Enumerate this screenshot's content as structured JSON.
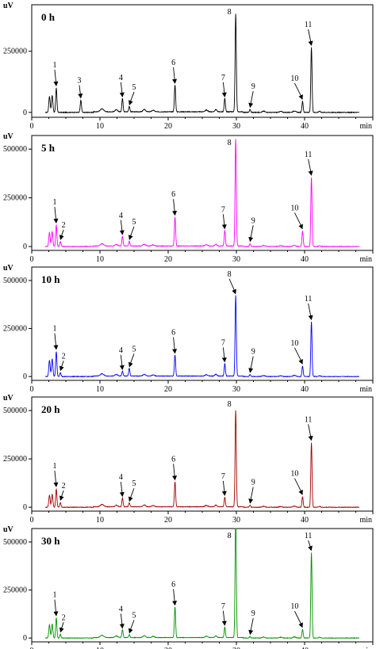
{
  "chart_data": [
    {
      "type": "line",
      "title": "0 h",
      "ylabel": "uV",
      "xlabel": "min",
      "xlim": [
        0,
        50
      ],
      "ylim": [
        -20000,
        440000
      ],
      "xticks": [
        0,
        10,
        20,
        30,
        40,
        50
      ],
      "xtick_labels": [
        "0",
        "10",
        "20",
        "30",
        "40",
        "50"
      ],
      "yticks": [
        0,
        250000
      ],
      "ytick_labels": [
        "0",
        "250000"
      ],
      "color": "#000000",
      "grid": false,
      "peaks": [
        {
          "label": "1",
          "x": 3.6,
          "y": 100000
        },
        {
          "label": "3",
          "x": 7.2,
          "y": 50000
        },
        {
          "label": "4",
          "x": 13.3,
          "y": 55000
        },
        {
          "label": "5",
          "x": 14.3,
          "y": 22000
        },
        {
          "label": "6",
          "x": 21.0,
          "y": 110000
        },
        {
          "label": "7",
          "x": 28.3,
          "y": 55000
        },
        {
          "label": "8",
          "x": 29.9,
          "y": 400000
        },
        {
          "label": "9",
          "x": 32.0,
          "y": 12000
        },
        {
          "label": "10",
          "x": 39.7,
          "y": 45000
        },
        {
          "label": "11",
          "x": 41.0,
          "y": 265000
        }
      ]
    },
    {
      "type": "line",
      "title": "5 h",
      "ylabel": "uV",
      "xlabel": "min",
      "xlim": [
        0,
        50
      ],
      "ylim": [
        -20000,
        570000
      ],
      "xticks": [
        0,
        10,
        20,
        30,
        40,
        50
      ],
      "xtick_labels": [
        "0",
        "10",
        "20",
        "30",
        "40",
        "50"
      ],
      "yticks": [
        0,
        250000,
        500000
      ],
      "ytick_labels": [
        "0",
        "250000",
        "500000"
      ],
      "color": "#ff00ff",
      "grid": false,
      "peaks": [
        {
          "label": "1",
          "x": 3.6,
          "y": 110000
        },
        {
          "label": "2",
          "x": 4.2,
          "y": 25000
        },
        {
          "label": "4",
          "x": 13.3,
          "y": 50000
        },
        {
          "label": "5",
          "x": 14.3,
          "y": 25000
        },
        {
          "label": "6",
          "x": 21.0,
          "y": 150000
        },
        {
          "label": "7",
          "x": 28.3,
          "y": 80000
        },
        {
          "label": "8",
          "x": 29.9,
          "y": 550000
        },
        {
          "label": "9",
          "x": 32.0,
          "y": 15000
        },
        {
          "label": "10",
          "x": 39.7,
          "y": 80000
        },
        {
          "label": "11",
          "x": 41.0,
          "y": 355000
        }
      ]
    },
    {
      "type": "line",
      "title": "10 h",
      "ylabel": "uV",
      "xlabel": "min",
      "xlim": [
        0,
        50
      ],
      "ylim": [
        -20000,
        570000
      ],
      "xticks": [
        0,
        10,
        20,
        30,
        40,
        50
      ],
      "xtick_labels": [
        "0",
        "10",
        "20",
        "30",
        "40",
        "50"
      ],
      "yticks": [
        0,
        250000,
        500000
      ],
      "ytick_labels": [
        "0",
        "250000",
        "500000"
      ],
      "color": "#0000ff",
      "grid": false,
      "peaks": [
        {
          "label": "1",
          "x": 3.6,
          "y": 130000
        },
        {
          "label": "2",
          "x": 4.2,
          "y": 20000
        },
        {
          "label": "4",
          "x": 13.3,
          "y": 25000
        },
        {
          "label": "5",
          "x": 14.3,
          "y": 40000
        },
        {
          "label": "6",
          "x": 21.0,
          "y": 110000
        },
        {
          "label": "7",
          "x": 28.3,
          "y": 65000
        },
        {
          "label": "8",
          "x": 29.9,
          "y": 420000
        },
        {
          "label": "9",
          "x": 32.0,
          "y": 10000
        },
        {
          "label": "10",
          "x": 39.7,
          "y": 55000
        },
        {
          "label": "11",
          "x": 41.0,
          "y": 285000
        }
      ]
    },
    {
      "type": "line",
      "title": "20 h",
      "ylabel": "uV",
      "xlabel": "min",
      "xlim": [
        0,
        50
      ],
      "ylim": [
        -20000,
        570000
      ],
      "xticks": [
        0,
        10,
        20,
        30,
        40,
        50
      ],
      "xtick_labels": [
        "0",
        "10",
        "20",
        "30",
        "40",
        "50"
      ],
      "yticks": [
        0,
        250000,
        500000
      ],
      "ytick_labels": [
        "0",
        "250000",
        "500000"
      ],
      "color": "#a00000",
      "grid": false,
      "peaks": [
        {
          "label": "1",
          "x": 3.6,
          "y": 95000
        },
        {
          "label": "2",
          "x": 4.2,
          "y": 25000
        },
        {
          "label": "4",
          "x": 13.3,
          "y": 45000
        },
        {
          "label": "5",
          "x": 14.3,
          "y": 20000
        },
        {
          "label": "6",
          "x": 21.0,
          "y": 130000
        },
        {
          "label": "7",
          "x": 28.3,
          "y": 50000
        },
        {
          "label": "8",
          "x": 29.9,
          "y": 500000
        },
        {
          "label": "9",
          "x": 32.0,
          "y": 10000
        },
        {
          "label": "10",
          "x": 39.7,
          "y": 55000
        },
        {
          "label": "11",
          "x": 41.0,
          "y": 335000
        }
      ]
    },
    {
      "type": "line",
      "title": "30 h",
      "ylabel": "uV",
      "xlabel": "min",
      "xlim": [
        0,
        50
      ],
      "ylim": [
        -20000,
        570000
      ],
      "xticks": [
        0,
        10,
        20,
        30,
        40,
        50
      ],
      "xtick_labels": [
        "0",
        "10",
        "20",
        "30",
        "40",
        "50"
      ],
      "yticks": [
        0,
        250000,
        500000
      ],
      "ytick_labels": [
        "0",
        "250000",
        "500000"
      ],
      "color": "#009000",
      "grid": false,
      "peaks": [
        {
          "label": "1",
          "x": 3.6,
          "y": 105000
        },
        {
          "label": "2",
          "x": 4.2,
          "y": 20000
        },
        {
          "label": "4",
          "x": 13.3,
          "y": 40000
        },
        {
          "label": "5",
          "x": 14.3,
          "y": 15000
        },
        {
          "label": "6",
          "x": 21.0,
          "y": 160000
        },
        {
          "label": "7",
          "x": 28.3,
          "y": 55000
        },
        {
          "label": "8",
          "x": 29.9,
          "y": 650000
        },
        {
          "label": "9",
          "x": 32.0,
          "y": 8000
        },
        {
          "label": "10",
          "x": 39.7,
          "y": 45000
        },
        {
          "label": "11",
          "x": 41.0,
          "y": 445000
        }
      ]
    }
  ]
}
